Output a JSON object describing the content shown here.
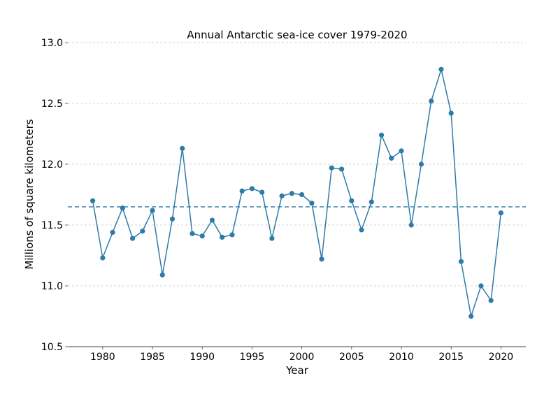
{
  "chart_data": {
    "type": "line",
    "title": "Annual Antarctic sea-ice cover 1979-2020",
    "xlabel": "Year",
    "ylabel": "Millions of square kilometers",
    "xlim": [
      1976.5,
      2022.5
    ],
    "ylim": [
      10.5,
      13.0
    ],
    "x_ticks": [
      1980,
      1985,
      1990,
      1995,
      2000,
      2005,
      2010,
      2015,
      2020
    ],
    "y_ticks": [
      10.5,
      11.0,
      11.5,
      12.0,
      12.5,
      13.0
    ],
    "x_tick_labels": [
      "1980",
      "1985",
      "1990",
      "1995",
      "2000",
      "2005",
      "2010",
      "2015",
      "2020"
    ],
    "y_tick_labels": [
      "10.5",
      "11.0",
      "11.5",
      "12.0",
      "12.5",
      "13.0"
    ],
    "grid": "horizontal dashed",
    "reference_line": {
      "y": 11.65,
      "style": "dashed"
    },
    "series": [
      {
        "color": "#2e7ba8",
        "x": [
          1979,
          1980,
          1981,
          1982,
          1983,
          1984,
          1985,
          1986,
          1987,
          1988,
          1989,
          1990,
          1991,
          1992,
          1993,
          1994,
          1995,
          1996,
          1997,
          1998,
          1999,
          2000,
          2001,
          2002,
          2003,
          2004,
          2005,
          2006,
          2007,
          2008,
          2009,
          2010,
          2011,
          2012,
          2013,
          2014,
          2015,
          2016,
          2017,
          2018,
          2019,
          2020
        ],
        "values": [
          11.7,
          11.23,
          11.44,
          11.64,
          11.39,
          11.45,
          11.62,
          11.09,
          11.55,
          12.13,
          11.43,
          11.41,
          11.54,
          11.4,
          11.42,
          11.78,
          11.8,
          11.77,
          11.39,
          11.74,
          11.76,
          11.75,
          11.68,
          11.22,
          11.97,
          11.96,
          11.7,
          11.46,
          11.69,
          12.24,
          12.05,
          12.11,
          11.5,
          12.0,
          12.52,
          12.78,
          12.42,
          11.2,
          10.75,
          11.0,
          10.88,
          11.6
        ]
      }
    ]
  }
}
